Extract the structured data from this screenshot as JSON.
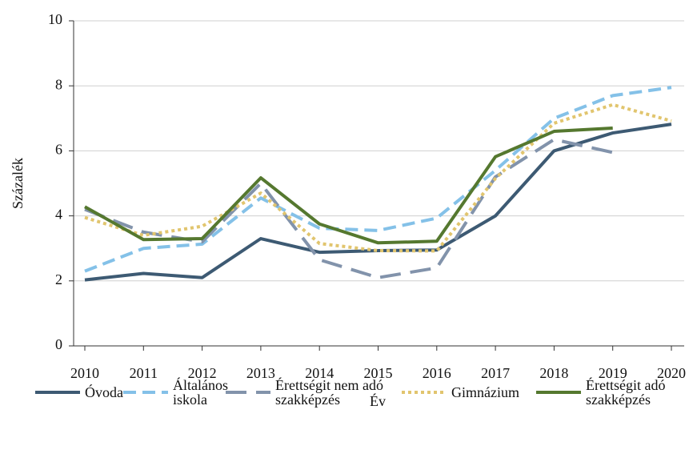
{
  "chart_data": {
    "type": "line",
    "x_label": "Év",
    "y_label": "Százalék",
    "x": [
      2010,
      2011,
      2012,
      2013,
      2014,
      2015,
      2016,
      2017,
      2018,
      2019,
      2020
    ],
    "xlim": [
      2010,
      2020
    ],
    "xticks": [
      2010,
      2011,
      2012,
      2013,
      2014,
      2015,
      2016,
      2017,
      2018,
      2019,
      2020
    ],
    "ylim": [
      0,
      10
    ],
    "yticks": [
      0,
      2,
      4,
      6,
      8,
      10
    ],
    "grid": true,
    "legend": "bottom",
    "series": [
      {
        "name": "Óvoda",
        "color": "#3d5a73",
        "dash": "solid",
        "values": [
          2.03,
          2.23,
          2.1,
          3.3,
          2.88,
          2.93,
          2.95,
          4.0,
          6.0,
          6.55,
          6.82
        ]
      },
      {
        "name": "Általános iskola",
        "color": "#84c1e8",
        "dash": "dashed",
        "values": [
          2.3,
          3.0,
          3.13,
          4.55,
          3.62,
          3.55,
          3.93,
          5.4,
          7.0,
          7.7,
          7.95
        ]
      },
      {
        "name": "Érettségit nem adó szakképzés",
        "color": "#8293ab",
        "dash": "longdash",
        "values": [
          4.2,
          3.5,
          3.2,
          5.0,
          2.65,
          2.1,
          2.4,
          5.2,
          6.35,
          5.95,
          null
        ]
      },
      {
        "name": "Gimnázium",
        "color": "#e1c56e",
        "dash": "dotted",
        "values": [
          3.95,
          3.4,
          3.68,
          4.7,
          3.15,
          2.93,
          2.92,
          5.15,
          6.85,
          7.42,
          6.92
        ]
      },
      {
        "name": "Érettségit adó szakképzés",
        "color": "#55782f",
        "dash": "solid",
        "values": [
          4.28,
          3.27,
          3.3,
          5.17,
          3.75,
          3.17,
          3.22,
          5.82,
          6.6,
          6.7,
          null
        ]
      }
    ]
  }
}
